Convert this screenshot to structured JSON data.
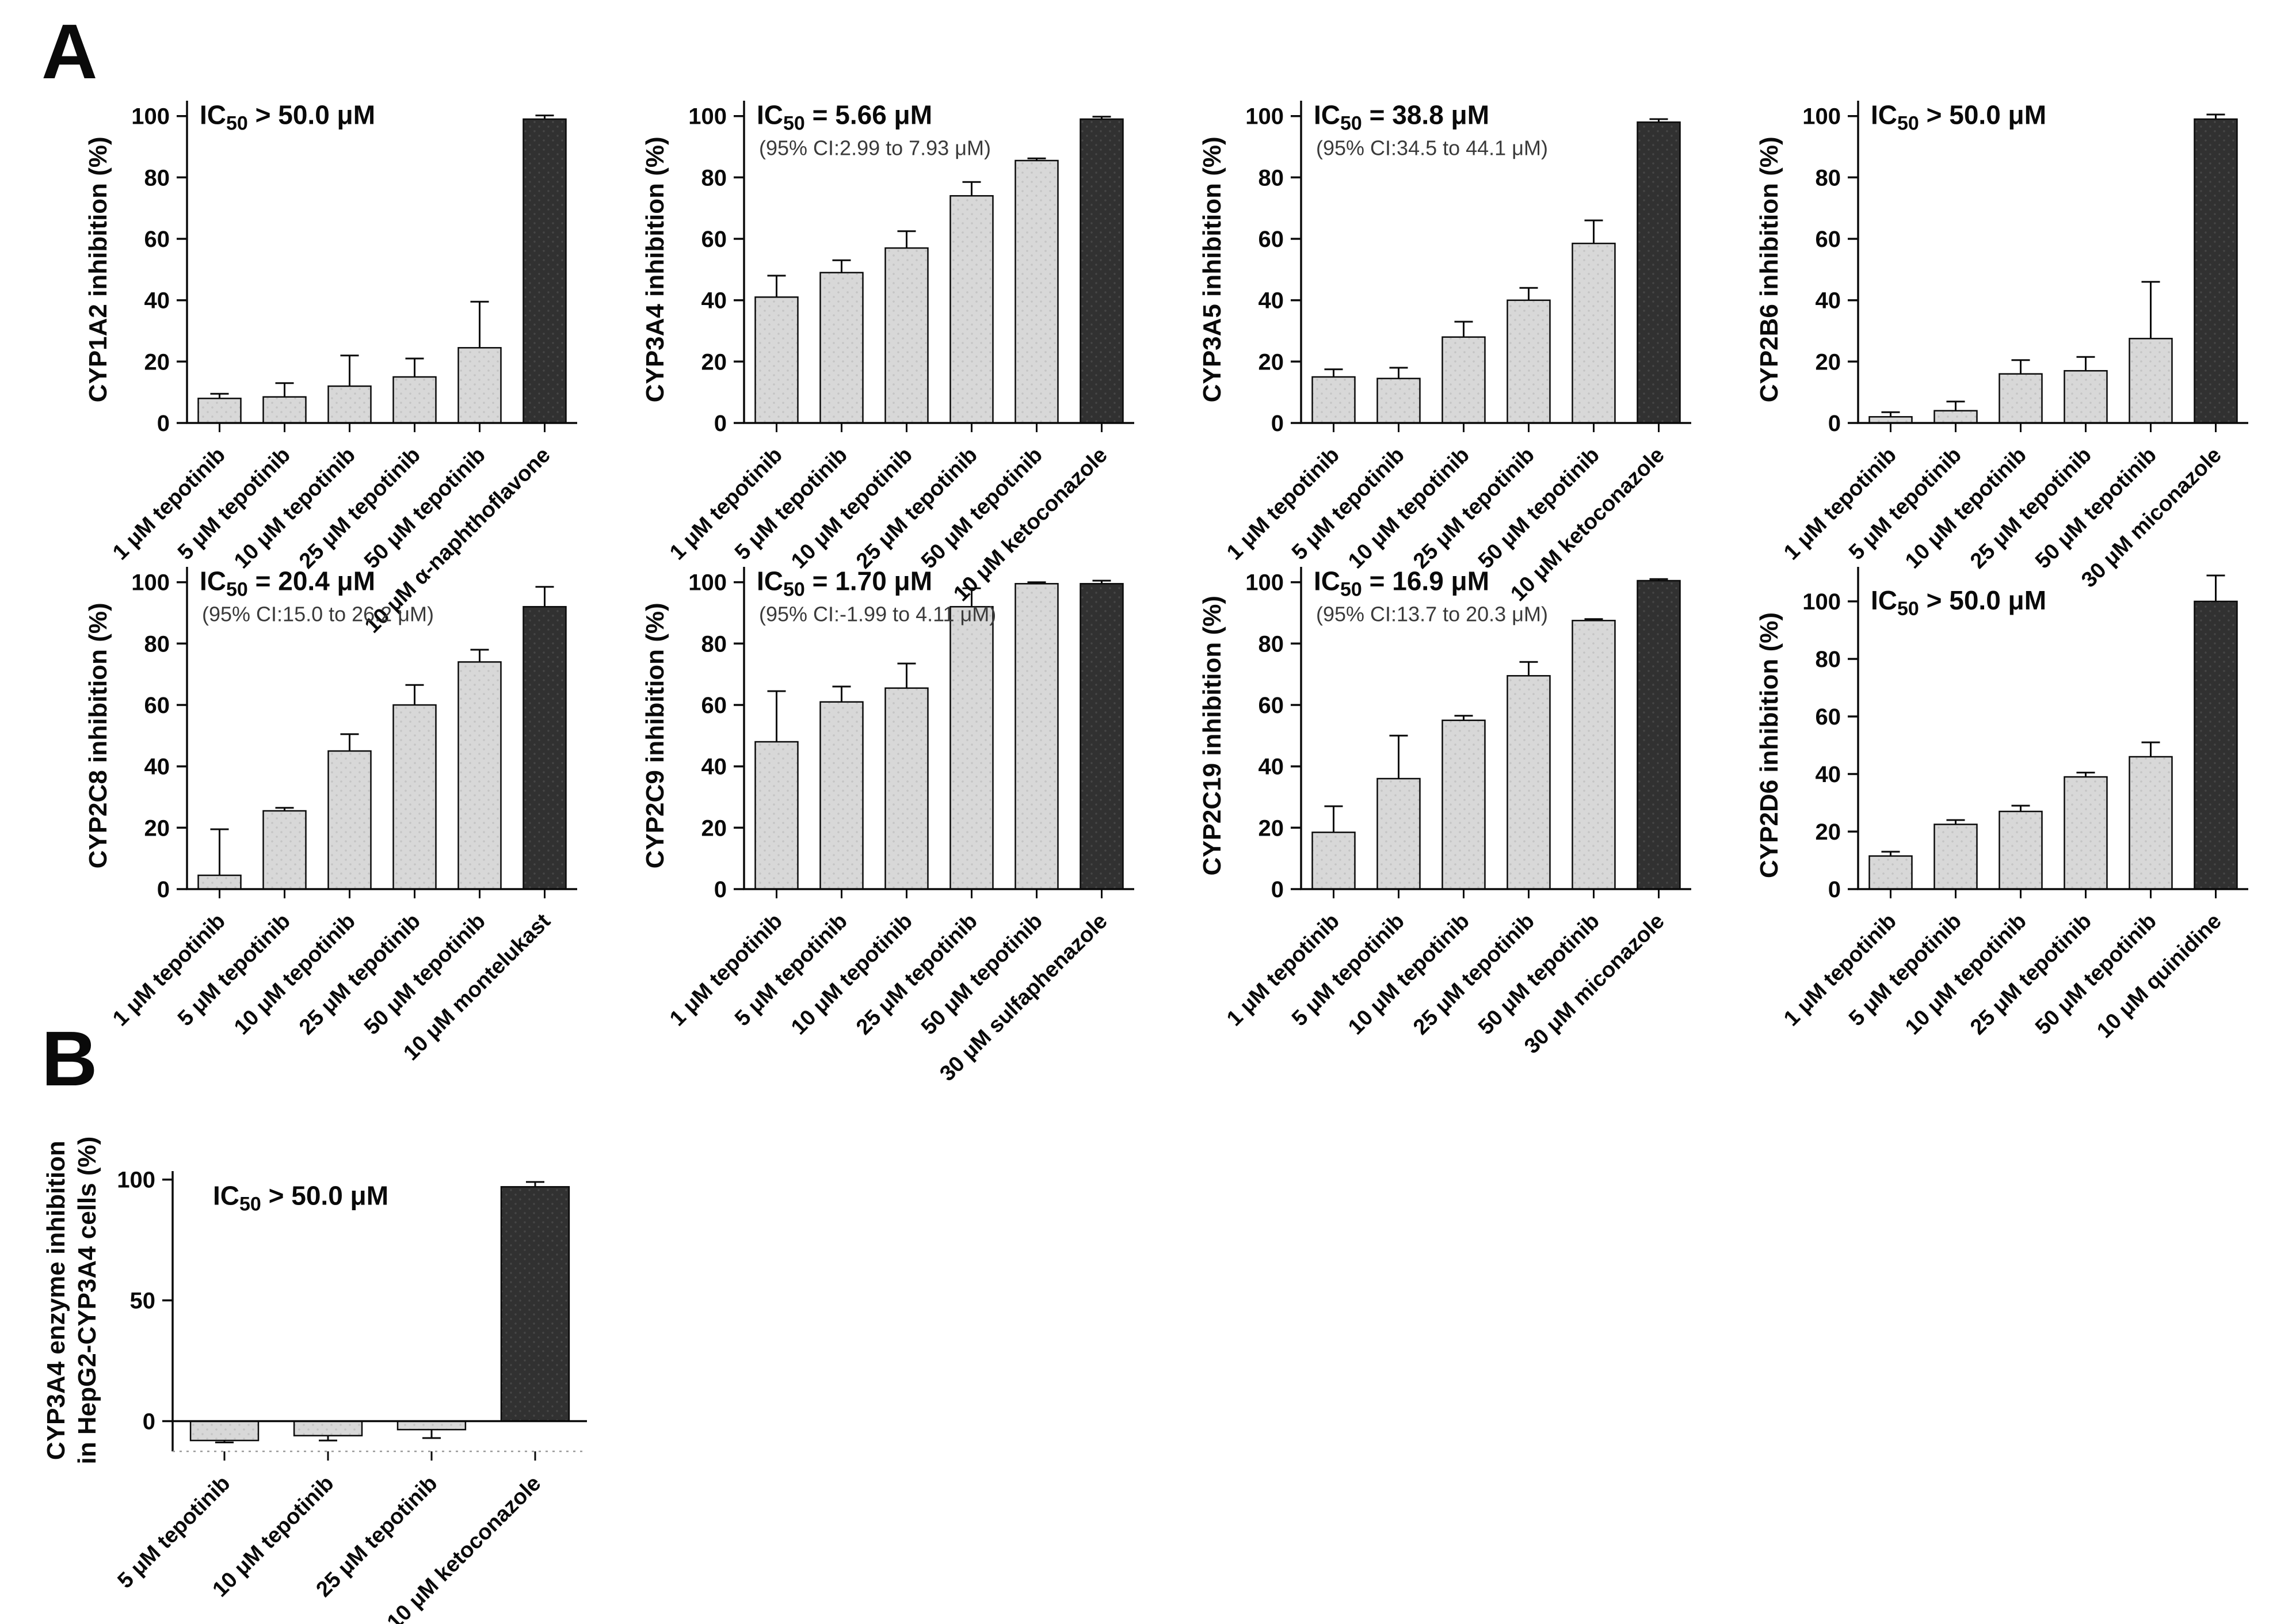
{
  "figure": {
    "panel_a_label": "A",
    "panel_b_label": "B",
    "ic50_prefix": "IC",
    "ic50_sub": "50",
    "colors": {
      "bar_light": "#d8d8d8",
      "bar_light_dot": "#c4c4c4",
      "bar_dark": "#313131",
      "bar_dark_dot": "#474747",
      "bar_border": "#0a0a0a",
      "axis": "#0a0a0a",
      "ci_text": "#3a3a3a",
      "dotted_baseline": "#999999"
    }
  },
  "chart_data": [
    {
      "type": "bar",
      "panel": "A",
      "id": "cyp1a2",
      "ylabel": "CYP1A2 inhibition (%)",
      "ic50": "> 50.0 μM",
      "ci": null,
      "ylim": [
        0,
        105
      ],
      "yticks": [
        0,
        20,
        40,
        60,
        80,
        100
      ],
      "categories": [
        "1 μM tepotinib",
        "5 μM tepotinib",
        "10 μM tepotinib",
        "25 μM tepotinib",
        "50 μM tepotinib",
        "10 μM α-naphthoflavone"
      ],
      "values": [
        8,
        8.5,
        12,
        15,
        24.5,
        99
      ],
      "errors": [
        1.5,
        4.5,
        10,
        6,
        15,
        1.2
      ],
      "dark": [
        false,
        false,
        false,
        false,
        false,
        true
      ]
    },
    {
      "type": "bar",
      "panel": "A",
      "id": "cyp3a4",
      "ylabel": "CYP3A4 inhibition (%)",
      "ic50": "= 5.66 μM",
      "ci": "(95% CI:2.99 to 7.93 μM)",
      "ylim": [
        0,
        105
      ],
      "yticks": [
        0,
        20,
        40,
        60,
        80,
        100
      ],
      "categories": [
        "1 μM tepotinib",
        "5 μM tepotinib",
        "10 μM tepotinib",
        "25 μM tepotinib",
        "50 μM tepotinib",
        "10 μM ketoconazole"
      ],
      "values": [
        41,
        49,
        57,
        74,
        85.5,
        99
      ],
      "errors": [
        7,
        4,
        5.5,
        4.5,
        0.7,
        0.8
      ],
      "dark": [
        false,
        false,
        false,
        false,
        false,
        true
      ]
    },
    {
      "type": "bar",
      "panel": "A",
      "id": "cyp3a5",
      "ylabel": "CYP3A5 inhibition (%)",
      "ic50": "= 38.8 μM",
      "ci": "(95% CI:34.5 to 44.1 μM)",
      "ylim": [
        0,
        105
      ],
      "yticks": [
        0,
        20,
        40,
        60,
        80,
        100
      ],
      "categories": [
        "1 μM tepotinib",
        "5 μM tepotinib",
        "10 μM tepotinib",
        "25 μM tepotinib",
        "50 μM tepotinib",
        "10 μM ketoconazole"
      ],
      "values": [
        15,
        14.5,
        28,
        40,
        58.5,
        98
      ],
      "errors": [
        2.5,
        3.5,
        5,
        4,
        7.5,
        1
      ],
      "dark": [
        false,
        false,
        false,
        false,
        false,
        true
      ]
    },
    {
      "type": "bar",
      "panel": "A",
      "id": "cyp2b6",
      "ylabel": "CYP2B6 inhibition (%)",
      "ic50": "> 50.0 μM",
      "ci": null,
      "ylim": [
        0,
        105
      ],
      "yticks": [
        0,
        20,
        40,
        60,
        80,
        100
      ],
      "categories": [
        "1 μM tepotinib",
        "5 μM tepotinib",
        "10 μM tepotinib",
        "25 μM tepotinib",
        "50 μM tepotinib",
        "30 μM miconazole"
      ],
      "values": [
        2,
        4,
        16,
        17,
        27.5,
        99
      ],
      "errors": [
        1.5,
        3,
        4.5,
        4.5,
        18.5,
        1.5
      ],
      "dark": [
        false,
        false,
        false,
        false,
        false,
        true
      ]
    },
    {
      "type": "bar",
      "panel": "A",
      "id": "cyp2c8",
      "ylabel": "CYP2C8 inhibition (%)",
      "ic50": "= 20.4 μM",
      "ci": "(95% CI:15.0 to 26.2 μM)",
      "ylim": [
        0,
        105
      ],
      "yticks": [
        0,
        20,
        40,
        60,
        80,
        100
      ],
      "categories": [
        "1 μM tepotinib",
        "5 μM tepotinib",
        "10 μM tepotinib",
        "25 μM tepotinib",
        "50 μM tepotinib",
        "10 μM montelukast"
      ],
      "values": [
        4.5,
        25.5,
        45,
        60,
        74,
        92
      ],
      "errors": [
        15,
        1,
        5.5,
        6.5,
        4,
        6.5
      ],
      "dark": [
        false,
        false,
        false,
        false,
        false,
        true
      ]
    },
    {
      "type": "bar",
      "panel": "A",
      "id": "cyp2c9",
      "ylabel": "CYP2C9 inhibition (%)",
      "ic50": "= 1.70 μM",
      "ci": "(95% CI:-1.99 to 4.11 μM)",
      "ylim": [
        0,
        105
      ],
      "yticks": [
        0,
        20,
        40,
        60,
        80,
        100
      ],
      "categories": [
        "1 μM tepotinib",
        "5 μM tepotinib",
        "10 μM tepotinib",
        "25 μM tepotinib",
        "50 μM tepotinib",
        "30 μM sulfaphenazole"
      ],
      "values": [
        48,
        61,
        65.5,
        92,
        99.5,
        99.5
      ],
      "errors": [
        16.5,
        5,
        8,
        6,
        0.5,
        1
      ],
      "dark": [
        false,
        false,
        false,
        false,
        false,
        true
      ]
    },
    {
      "type": "bar",
      "panel": "A",
      "id": "cyp2c19",
      "ylabel": "CYP2C19 inhibition (%)",
      "ic50": "= 16.9 μM",
      "ci": "(95% CI:13.7 to 20.3 μM)",
      "ylim": [
        0,
        105
      ],
      "yticks": [
        0,
        20,
        40,
        60,
        80,
        100
      ],
      "categories": [
        "1 μM tepotinib",
        "5 μM tepotinib",
        "10 μM tepotinib",
        "25 μM tepotinib",
        "50 μM tepotinib",
        "30 μM miconazole"
      ],
      "values": [
        18.5,
        36,
        55,
        69.5,
        87.5,
        100.5
      ],
      "errors": [
        8.5,
        14,
        1.5,
        4.5,
        0.5,
        0.5
      ],
      "dark": [
        false,
        false,
        false,
        false,
        false,
        true
      ]
    },
    {
      "type": "bar",
      "panel": "A",
      "id": "cyp2d6",
      "ylabel": "CYP2D6 inhibition (%)",
      "ic50": "> 50.0 μM",
      "ci": null,
      "ylim": [
        0,
        112
      ],
      "yticks": [
        0,
        20,
        40,
        60,
        80,
        100
      ],
      "categories": [
        "1 μM tepotinib",
        "5 μM tepotinib",
        "10 μM tepotinib",
        "25 μM tepotinib",
        "50 μM tepotinib",
        "10 μM quinidine"
      ],
      "values": [
        11.5,
        22.5,
        27,
        39,
        46,
        100
      ],
      "errors": [
        1.5,
        1.5,
        2,
        1.5,
        5,
        9
      ],
      "dark": [
        false,
        false,
        false,
        false,
        false,
        true
      ]
    },
    {
      "type": "bar",
      "panel": "B",
      "id": "cyp3a4-hepg2",
      "ylabel_lines": [
        "CYP3A4 enzyme inhibition",
        "in HepG2-CYP3A4 cells (%)"
      ],
      "ic50": "> 50.0 μM",
      "ci": null,
      "ylim": [
        -12.5,
        103.5
      ],
      "yticks": [
        0,
        50,
        100
      ],
      "categories": [
        "5 μM tepotinib",
        "10 μM tepotinib",
        "25 μM tepotinib",
        "10 μM ketoconazole"
      ],
      "values": [
        -8,
        -6,
        -3.5,
        97
      ],
      "errors": [
        0.8,
        2,
        3.5,
        2
      ],
      "dark": [
        false,
        false,
        false,
        true
      ]
    }
  ]
}
